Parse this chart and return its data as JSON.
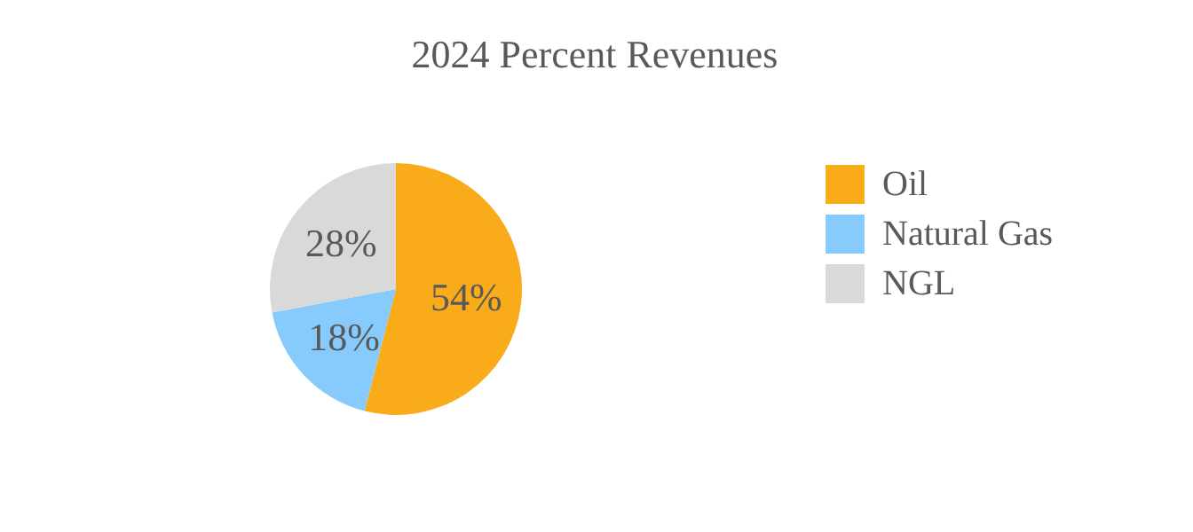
{
  "chart_data": {
    "type": "pie",
    "title": "2024 Percent Revenues",
    "categories": [
      "Oil",
      "Natural Gas",
      "NGL"
    ],
    "values": [
      54,
      18,
      28
    ],
    "colors": [
      "#f9ab1a",
      "#87cbfd",
      "#d9d9d9"
    ],
    "value_labels": [
      "54%",
      "18%",
      "28%"
    ],
    "legend": "right"
  }
}
